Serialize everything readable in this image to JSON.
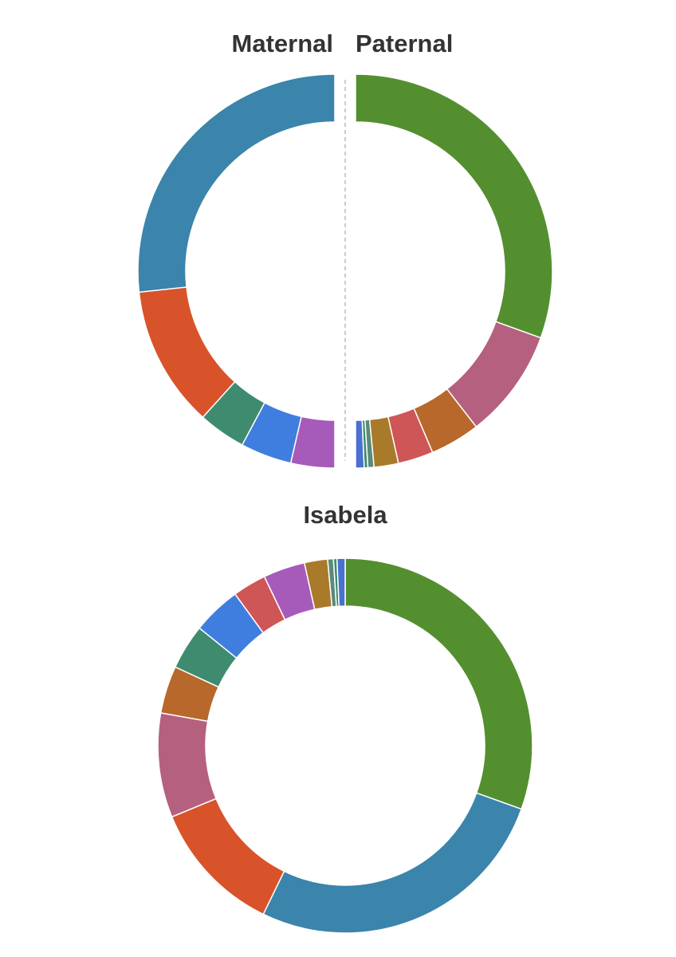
{
  "chart_data": [
    {
      "type": "donut",
      "title": "Maternal",
      "values": [
        3.6,
        4.2,
        3.9,
        11.6,
        26.7
      ],
      "colors": [
        "#a65bba",
        "#3f7ede",
        "#3e8b70",
        "#d8532a",
        "#3b84ab"
      ]
    },
    {
      "type": "donut",
      "title": "Paternal",
      "values": [
        30.5,
        9.0,
        4.1,
        2.9,
        2.0,
        0.5,
        0.3,
        0.7
      ],
      "colors": [
        "#548f2f",
        "#b5607f",
        "#b7682a",
        "#cf5656",
        "#a87a2a",
        "#5a8a7a",
        "#3e8b70",
        "#4a70d0"
      ]
    },
    {
      "type": "donut",
      "title": "Isabela",
      "values": [
        30.5,
        26.7,
        11.6,
        9.0,
        4.1,
        3.9,
        4.2,
        2.9,
        3.6,
        2.0,
        0.5,
        0.3,
        0.7
      ],
      "colors": [
        "#548f2f",
        "#3b84ab",
        "#d8532a",
        "#b5607f",
        "#b7682a",
        "#3e8b70",
        "#3f7ede",
        "#cf5656",
        "#a65bba",
        "#a87a2a",
        "#5a8a7a",
        "#3e8b70",
        "#4a70d0"
      ]
    }
  ]
}
